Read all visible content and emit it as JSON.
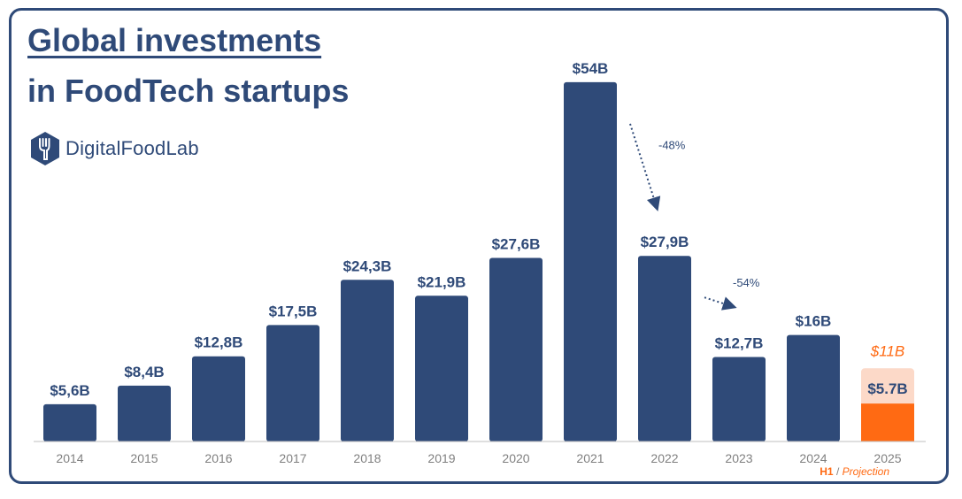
{
  "title": {
    "line1": "Global investments",
    "line2": "in FoodTech startups"
  },
  "brand": {
    "name": "DigitalFoodLab",
    "icon": "fork-hexagon-icon"
  },
  "colors": {
    "primary": "#2f4a78",
    "accent": "#ff6a13",
    "projection": "#fcd9c8",
    "axis": "#808080"
  },
  "chart_data": {
    "type": "bar",
    "categories": [
      "2014",
      "2015",
      "2016",
      "2017",
      "2018",
      "2019",
      "2020",
      "2021",
      "2022",
      "2023",
      "2024",
      "2025"
    ],
    "values": [
      5.6,
      8.4,
      12.8,
      17.5,
      24.3,
      21.9,
      27.6,
      54,
      27.9,
      12.7,
      16,
      5.7
    ],
    "value_labels": [
      "$5,6B",
      "$8,4B",
      "$12,8B",
      "$17,5B",
      "$24,3B",
      "$21,9B",
      "$27,6B",
      "$54B",
      "$27,9B",
      "$12,7B",
      "$16B",
      "$5.7B"
    ],
    "projection": {
      "category": "2025",
      "value": 11,
      "label": "$11B"
    },
    "unit": "$B",
    "ylim": [
      0,
      55
    ],
    "annotations": [
      {
        "from": "2021",
        "to": "2022",
        "text": "-48%"
      },
      {
        "from": "2022",
        "to": "2023",
        "text": "-54%"
      }
    ],
    "legend_note": {
      "h1": "H1",
      "sep": " / ",
      "projection": "Projection"
    }
  }
}
